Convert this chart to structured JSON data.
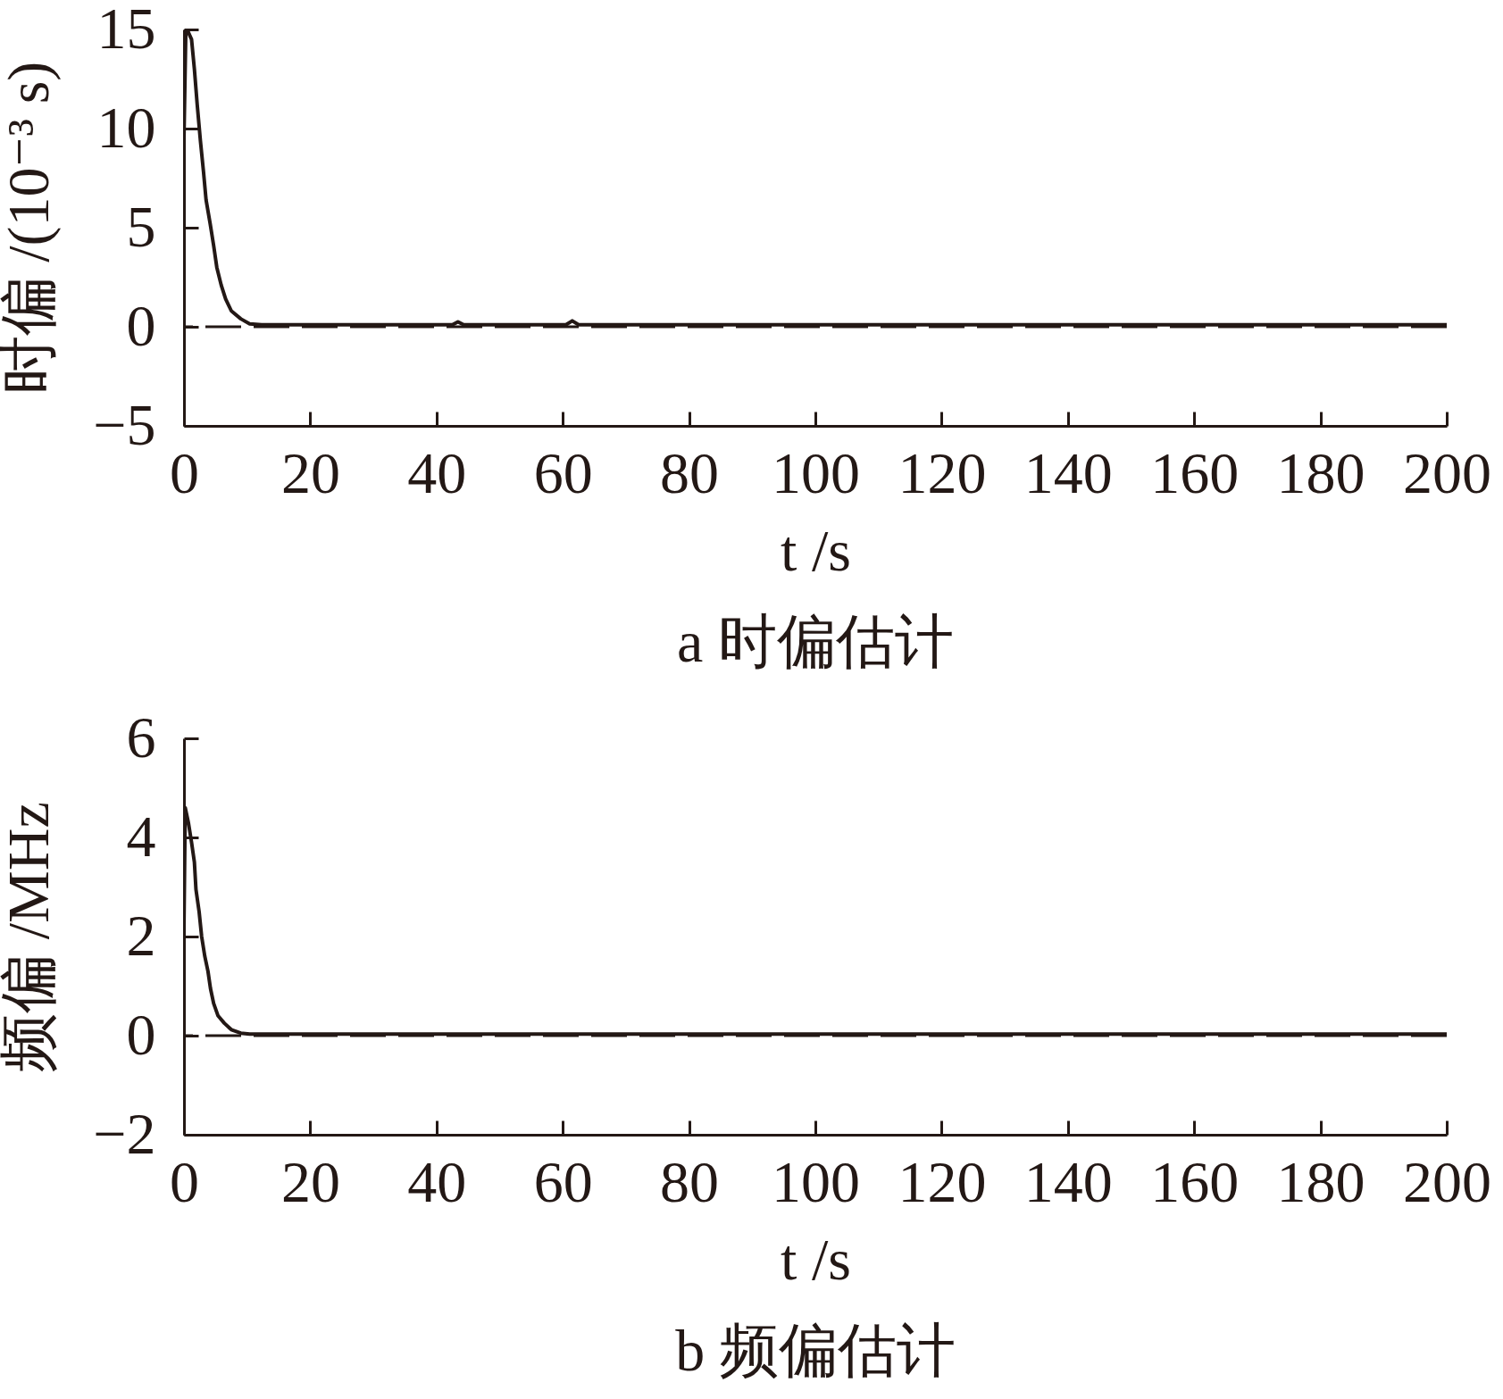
{
  "chart_data": [
    {
      "type": "line",
      "title": "a 时偏估计",
      "xlabel": "t /s",
      "ylabel": "时偏 /(10⁻³ s)",
      "x": [
        0,
        0.3,
        0.5,
        1.2,
        1.65,
        2.1,
        2.6,
        3.1,
        3.5,
        4.15,
        4.7,
        5.2,
        5.9,
        6.6,
        7.5,
        9,
        10.4,
        12.3,
        20,
        30,
        42.5,
        43.4,
        44.3,
        60.5,
        61.5,
        62.5,
        80,
        100,
        120,
        140,
        160,
        180,
        200
      ],
      "series": [
        {
          "color": "#231815",
          "values": [
            9.5,
            15,
            15,
            14.5,
            13,
            11.2,
            9.4,
            7.8,
            6.4,
            5.2,
            4.1,
            3,
            2.1,
            1.4,
            0.8,
            0.4,
            0.15,
            0.1,
            0.1,
            0.1,
            0.1,
            0.25,
            0.1,
            0.1,
            0.3,
            0.1,
            0.1,
            0.1,
            0.1,
            0.1,
            0.1,
            0.1,
            0.1
          ]
        }
      ],
      "xlim": [
        0,
        200
      ],
      "xticks": [
        0,
        20,
        40,
        60,
        80,
        100,
        120,
        140,
        160,
        180,
        200
      ],
      "ylim": [
        -5,
        15
      ],
      "yticks": [
        {
          "value": -5,
          "label": "−5"
        },
        0,
        5,
        10,
        15
      ],
      "ref_lines": [
        {
          "axis": "y",
          "value": 0,
          "color": "#231815",
          "line_style": "dashed"
        }
      ]
    },
    {
      "type": "line",
      "title": "b 频偏估计",
      "xlabel": "t /s",
      "ylabel": "频偏 /MHz",
      "x": [
        0,
        0.2,
        0.7,
        1.2,
        1.65,
        1.9,
        2.4,
        2.8,
        3.3,
        3.8,
        4.2,
        4.7,
        5.4,
        6.4,
        7.5,
        9,
        10.4,
        20,
        50,
        100,
        150,
        200
      ],
      "series": [
        {
          "color": "#231815",
          "values": [
            2.2,
            4.6,
            4.3,
            3.9,
            3.5,
            2.95,
            2.5,
            2.0,
            1.6,
            1.3,
            0.95,
            0.65,
            0.4,
            0.25,
            0.12,
            0.05,
            0.03,
            0.03,
            0.03,
            0.03,
            0.03,
            0.03
          ]
        }
      ],
      "xlim": [
        0,
        200
      ],
      "xticks": [
        0,
        20,
        40,
        60,
        80,
        100,
        120,
        140,
        160,
        180,
        200
      ],
      "ylim": [
        -2,
        6
      ],
      "yticks": [
        {
          "value": -2,
          "label": "−2"
        },
        0,
        2,
        4,
        6
      ],
      "ref_lines": [
        {
          "axis": "y",
          "value": 0,
          "color": "#231815",
          "line_style": "dashed"
        }
      ]
    }
  ]
}
